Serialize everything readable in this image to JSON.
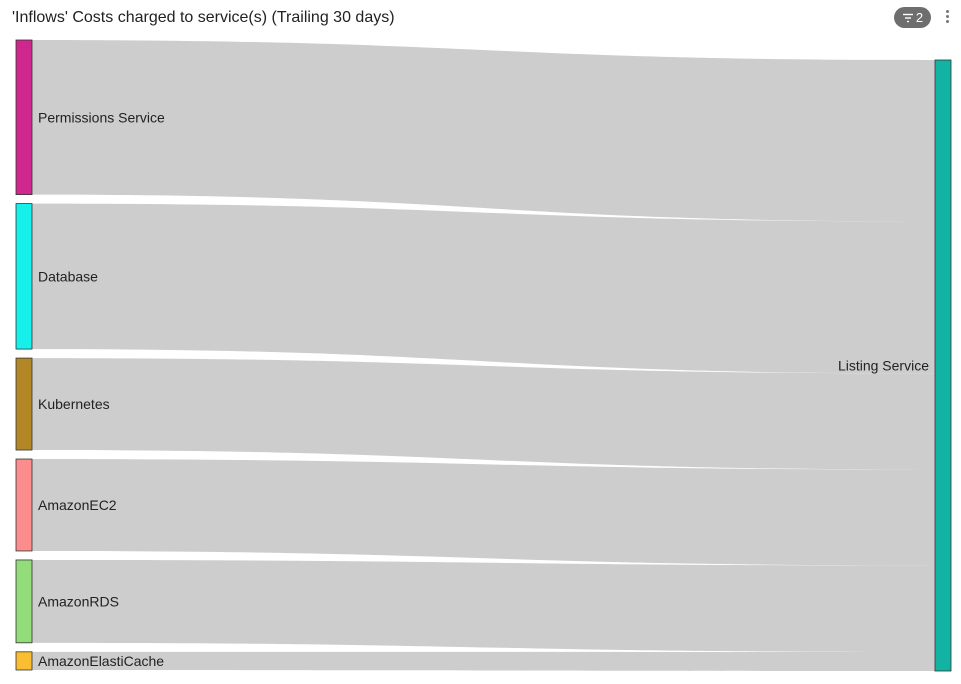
{
  "header": {
    "title": "'Inflows' Costs charged to service(s) (Trailing 30 days)",
    "filter_count": "2",
    "filter_icon": "filter-icon",
    "menu_icon": "kebab-menu-icon"
  },
  "chart_data": {
    "type": "sankey",
    "title": "'Inflows' Costs charged to service(s) (Trailing 30 days)",
    "sources": [
      {
        "name": "Permissions Service",
        "value": 153,
        "color": "#d0278f"
      },
      {
        "name": "Database",
        "value": 144,
        "color": "#15f0ea"
      },
      {
        "name": "Kubernetes",
        "value": 91,
        "color": "#b38726"
      },
      {
        "name": "AmazonEC2",
        "value": 91,
        "color": "#fd8c8c"
      },
      {
        "name": "AmazonRDS",
        "value": 82,
        "color": "#92dd79"
      },
      {
        "name": "AmazonElastiCache",
        "value": 18,
        "color": "#fbbd32"
      }
    ],
    "targets": [
      {
        "name": "Listing Service",
        "value": 579,
        "color": "#13b3a3"
      }
    ],
    "links": [
      {
        "source": "Permissions Service",
        "target": "Listing Service",
        "value": 153
      },
      {
        "source": "Database",
        "target": "Listing Service",
        "value": 144
      },
      {
        "source": "Kubernetes",
        "target": "Listing Service",
        "value": 91
      },
      {
        "source": "AmazonEC2",
        "target": "Listing Service",
        "value": 91
      },
      {
        "source": "AmazonRDS",
        "target": "Listing Service",
        "value": 82
      },
      {
        "source": "AmazonElastiCache",
        "target": "Listing Service",
        "value": 18
      }
    ],
    "link_color": "#cdcdcd"
  }
}
